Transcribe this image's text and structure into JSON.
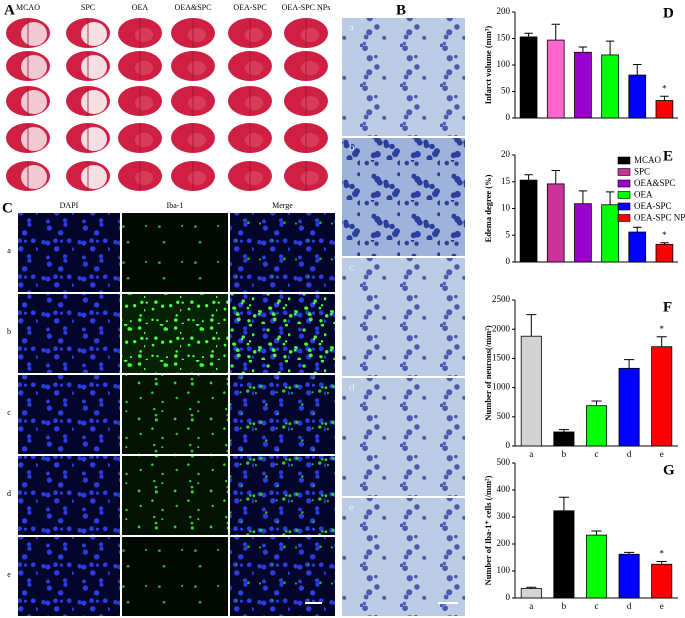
{
  "figure": {
    "panel_labels": [
      "A",
      "B",
      "C",
      "D",
      "E",
      "F",
      "G"
    ],
    "a_columns": [
      "MCAO",
      "SPC",
      "OEA",
      "OEA&SPC",
      "OEA-SPC",
      "OEA-SPC NPs"
    ],
    "b_rows": [
      "a",
      "b",
      "c",
      "d",
      "e"
    ],
    "c_columns": [
      "DAPI",
      "Iba-1",
      "Merge"
    ],
    "c_rows": [
      "a",
      "b",
      "c",
      "d",
      "e"
    ]
  },
  "chart_data": [
    {
      "type": "bar",
      "y_label": "Infarct volume (mm³)",
      "categories": [
        null,
        null,
        null,
        null,
        null,
        null
      ],
      "values": [
        153,
        147,
        124,
        119,
        81,
        33
      ],
      "errors": [
        7,
        30,
        10,
        26,
        20,
        8
      ],
      "colors": [
        "#000000",
        "#ff66cc",
        "#9900cc",
        "#00ff00",
        "#0000ff",
        "#ff0000"
      ],
      "ylim": [
        0,
        200
      ],
      "yticks": [
        0,
        50,
        100,
        150,
        200
      ],
      "annotation": "*"
    },
    {
      "type": "bar",
      "y_label": "Edema degree (%)",
      "categories": [
        "MCAO",
        "SPC",
        "OEA&SPC",
        "OEA",
        "OEA-SPC",
        "OEA-SPC NPs"
      ],
      "values": [
        15.3,
        14.6,
        10.9,
        10.7,
        5.6,
        3.3
      ],
      "errors": [
        1.0,
        2.5,
        2.4,
        2.4,
        0.9,
        0.3
      ],
      "colors": [
        "#000000",
        "#cc3399",
        "#9900cc",
        "#00ff00",
        "#0000ff",
        "#ff0000"
      ],
      "ylim": [
        0,
        20
      ],
      "yticks": [
        0,
        5,
        10,
        15,
        20
      ],
      "legend": "upper right",
      "annotation": "*"
    },
    {
      "type": "bar",
      "y_label": "Number of neurons(/mm²)",
      "categories": [
        "a",
        "b",
        "c",
        "d",
        "e"
      ],
      "values": [
        1880,
        240,
        690,
        1330,
        1700
      ],
      "errors": [
        370,
        40,
        80,
        150,
        170
      ],
      "colors": [
        "#d3d3d3",
        "#000000",
        "#00ff00",
        "#0000ff",
        "#ff0000"
      ],
      "ylim": [
        0,
        2500
      ],
      "yticks": [
        0,
        500,
        1000,
        1500,
        2000,
        2500
      ],
      "annotation": "*"
    },
    {
      "type": "bar",
      "y_label": "Number of Iba-1⁺ cells (/mm²)",
      "categories": [
        "a",
        "b",
        "c",
        "d",
        "e"
      ],
      "values": [
        35,
        323,
        233,
        162,
        125
      ],
      "errors": [
        5,
        50,
        15,
        7,
        10
      ],
      "colors": [
        "#d3d3d3",
        "#000000",
        "#00ff00",
        "#0000ff",
        "#ff0000"
      ],
      "ylim": [
        0,
        500
      ],
      "yticks": [
        0,
        100,
        200,
        300,
        400,
        500
      ],
      "annotation": "*"
    }
  ]
}
